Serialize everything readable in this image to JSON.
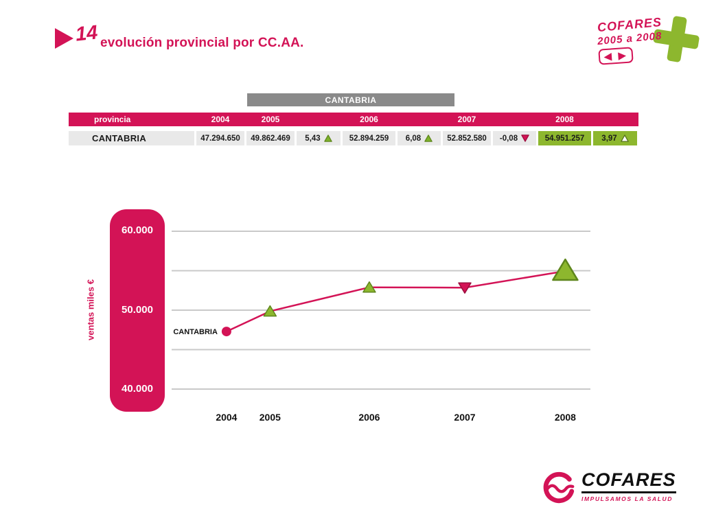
{
  "slide": {
    "number": "14",
    "title": "evolución provincial por CC.AA."
  },
  "badge": {
    "line1": "COFARES",
    "line2": "2005 a 2008",
    "arrows": "◀ ▶"
  },
  "table": {
    "region_header": "CANTABRIA",
    "columns": [
      "provincia",
      "2004",
      "2005",
      "2006",
      "2007",
      "2008"
    ],
    "row": {
      "province": "CANTABRIA",
      "cells": [
        {
          "text": "47.294.650"
        },
        {
          "text": "49.862.469"
        },
        {
          "text": "5,43",
          "marker": "triangle-up-icon",
          "marker_fill": "#7FB32B",
          "marker_stroke": "#5E861C"
        },
        {
          "text": "52.894.259"
        },
        {
          "text": "6,08",
          "marker": "triangle-up-icon",
          "marker_fill": "#7FB32B",
          "marker_stroke": "#5E861C"
        },
        {
          "text": "52.852.580"
        },
        {
          "text": "-0,08",
          "marker": "triangle-down-icon",
          "marker_fill": "#D31356",
          "marker_stroke": "#9C0E3E"
        },
        {
          "text": "54.951.257",
          "highlight": true
        },
        {
          "text": "3,97",
          "marker": "triangle-up-outline-icon",
          "marker_fill": "#FFFFFF",
          "marker_stroke": "#56731B",
          "highlight": true
        }
      ]
    }
  },
  "chart_data": {
    "type": "line",
    "title": "CANTABRIA ventas 2004-2008",
    "categories": [
      "2004",
      "2005",
      "2006",
      "2007",
      "2008"
    ],
    "series": [
      {
        "name": "CANTABRIA",
        "values": [
          47294.65,
          49862.469,
          52894.259,
          52852.58,
          54951.257
        ],
        "unit": "miles €",
        "markers": [
          "circle",
          "triangle-up",
          "triangle-up",
          "triangle-down",
          "triangle-up-large"
        ],
        "marker_fills": [
          "#D31356",
          "#8DB72E",
          "#8DB72E",
          "#D31356",
          "#8DB72E"
        ],
        "marker_strokes": [
          "#D31356",
          "#5E861C",
          "#5E861C",
          "#9C0E3E",
          "#5E861C"
        ]
      }
    ],
    "xlabel": "",
    "ylabel": "ventas miles €",
    "ylim": [
      40000,
      60000
    ],
    "ytick_step": 5000,
    "ytick_labels_shown": [
      "60.000",
      "50.000",
      "40.000"
    ],
    "grid": true,
    "legend": false,
    "line_color": "#D31356",
    "point_label": {
      "text": "CANTABRIA",
      "at_category": "2004"
    }
  },
  "footer_logo": {
    "name": "COFARES",
    "tagline": "IMPULSAMOS LA SALUD"
  },
  "colors": {
    "crimson": "#D31356",
    "green": "#8DB72E",
    "greenDark": "#5E861C",
    "grayBar": "#8A8A8A",
    "cellBg": "#E9E9E9",
    "gridline": "#C9C9C9"
  }
}
